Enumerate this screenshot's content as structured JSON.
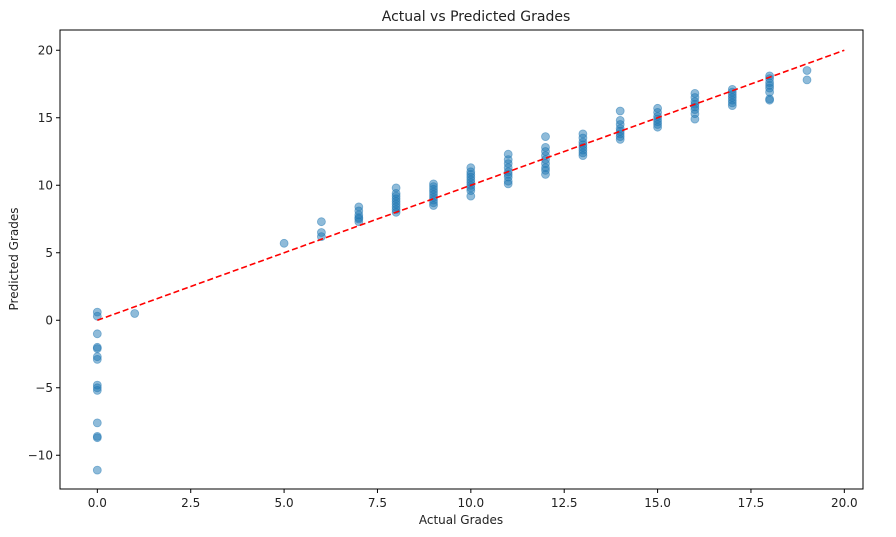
{
  "chart_data": {
    "type": "scatter",
    "title": "Actual vs Predicted Grades",
    "xlabel": "Actual Grades",
    "ylabel": "Predicted Grades",
    "xlim": [
      -1.0,
      20.5
    ],
    "ylim": [
      -12.5,
      21.5
    ],
    "xticks": [
      0.0,
      2.5,
      5.0,
      7.5,
      10.0,
      12.5,
      15.0,
      17.5,
      20.0
    ],
    "xtick_labels": [
      "0.0",
      "2.5",
      "5.0",
      "7.5",
      "10.0",
      "12.5",
      "15.0",
      "17.5",
      "20.0"
    ],
    "yticks": [
      -10,
      -5,
      0,
      5,
      10,
      15,
      20
    ],
    "ytick_labels": [
      "−10",
      "−5",
      "0",
      "5",
      "10",
      "15",
      "20"
    ],
    "grid": false,
    "reference_line": {
      "x": [
        0,
        20
      ],
      "y": [
        0,
        20
      ],
      "color": "#ff0000",
      "style": "dashed"
    },
    "point_color": "#1f77b4",
    "series": [
      {
        "points": [
          [
            0,
            0.6
          ],
          [
            0,
            0.3
          ],
          [
            0,
            -1.0
          ],
          [
            0,
            -2.0
          ],
          [
            0,
            -2.1
          ],
          [
            0,
            -2.7
          ],
          [
            0,
            -2.9
          ],
          [
            0,
            -4.8
          ],
          [
            0,
            -5.0
          ],
          [
            0,
            -5.2
          ],
          [
            0,
            -7.6
          ],
          [
            0,
            -8.6
          ],
          [
            0,
            -8.7
          ],
          [
            0,
            -11.1
          ],
          [
            1,
            0.5
          ],
          [
            5,
            5.7
          ],
          [
            6,
            7.3
          ],
          [
            6,
            6.5
          ],
          [
            6,
            6.2
          ],
          [
            7,
            8.4
          ],
          [
            7,
            8.1
          ],
          [
            7,
            7.8
          ],
          [
            7,
            7.6
          ],
          [
            7,
            7.5
          ],
          [
            7,
            7.3
          ],
          [
            8,
            9.8
          ],
          [
            8,
            9.4
          ],
          [
            8,
            9.2
          ],
          [
            8,
            9.0
          ],
          [
            8,
            8.8
          ],
          [
            8,
            8.6
          ],
          [
            8,
            8.4
          ],
          [
            8,
            8.2
          ],
          [
            8,
            8.0
          ],
          [
            9,
            10.1
          ],
          [
            9,
            9.9
          ],
          [
            9,
            9.7
          ],
          [
            9,
            9.5
          ],
          [
            9,
            9.3
          ],
          [
            9,
            9.1
          ],
          [
            9,
            8.9
          ],
          [
            9,
            8.7
          ],
          [
            9,
            8.5
          ],
          [
            10,
            11.3
          ],
          [
            10,
            11.0
          ],
          [
            10,
            10.8
          ],
          [
            10,
            10.6
          ],
          [
            10,
            10.4
          ],
          [
            10,
            10.2
          ],
          [
            10,
            10.0
          ],
          [
            10,
            9.8
          ],
          [
            10,
            9.6
          ],
          [
            10,
            9.2
          ],
          [
            11,
            12.3
          ],
          [
            11,
            11.9
          ],
          [
            11,
            11.6
          ],
          [
            11,
            11.3
          ],
          [
            11,
            11.0
          ],
          [
            11,
            10.8
          ],
          [
            11,
            10.6
          ],
          [
            11,
            10.3
          ],
          [
            11,
            10.1
          ],
          [
            12,
            13.6
          ],
          [
            12,
            12.8
          ],
          [
            12,
            12.5
          ],
          [
            12,
            12.2
          ],
          [
            12,
            11.9
          ],
          [
            12,
            11.6
          ],
          [
            12,
            11.3
          ],
          [
            12,
            11.1
          ],
          [
            12,
            10.8
          ],
          [
            13,
            13.8
          ],
          [
            13,
            13.5
          ],
          [
            13,
            13.2
          ],
          [
            13,
            13.0
          ],
          [
            13,
            12.8
          ],
          [
            13,
            12.6
          ],
          [
            13,
            12.4
          ],
          [
            13,
            12.2
          ],
          [
            14,
            15.5
          ],
          [
            14,
            14.8
          ],
          [
            14,
            14.5
          ],
          [
            14,
            14.2
          ],
          [
            14,
            14.0
          ],
          [
            14,
            13.8
          ],
          [
            14,
            13.6
          ],
          [
            14,
            13.4
          ],
          [
            15,
            15.7
          ],
          [
            15,
            15.4
          ],
          [
            15,
            15.1
          ],
          [
            15,
            14.9
          ],
          [
            15,
            14.7
          ],
          [
            15,
            14.5
          ],
          [
            15,
            14.3
          ],
          [
            16,
            16.8
          ],
          [
            16,
            16.5
          ],
          [
            16,
            16.2
          ],
          [
            16,
            16.0
          ],
          [
            16,
            15.8
          ],
          [
            16,
            15.6
          ],
          [
            16,
            15.3
          ],
          [
            16,
            14.9
          ],
          [
            17,
            17.1
          ],
          [
            17,
            16.9
          ],
          [
            17,
            16.7
          ],
          [
            17,
            16.5
          ],
          [
            17,
            16.3
          ],
          [
            17,
            16.1
          ],
          [
            17,
            15.9
          ],
          [
            18,
            18.1
          ],
          [
            18,
            17.9
          ],
          [
            18,
            17.6
          ],
          [
            18,
            17.4
          ],
          [
            18,
            17.2
          ],
          [
            18,
            16.9
          ],
          [
            18,
            16.4
          ],
          [
            18,
            16.3
          ],
          [
            19,
            18.5
          ],
          [
            19,
            17.8
          ]
        ]
      }
    ]
  }
}
